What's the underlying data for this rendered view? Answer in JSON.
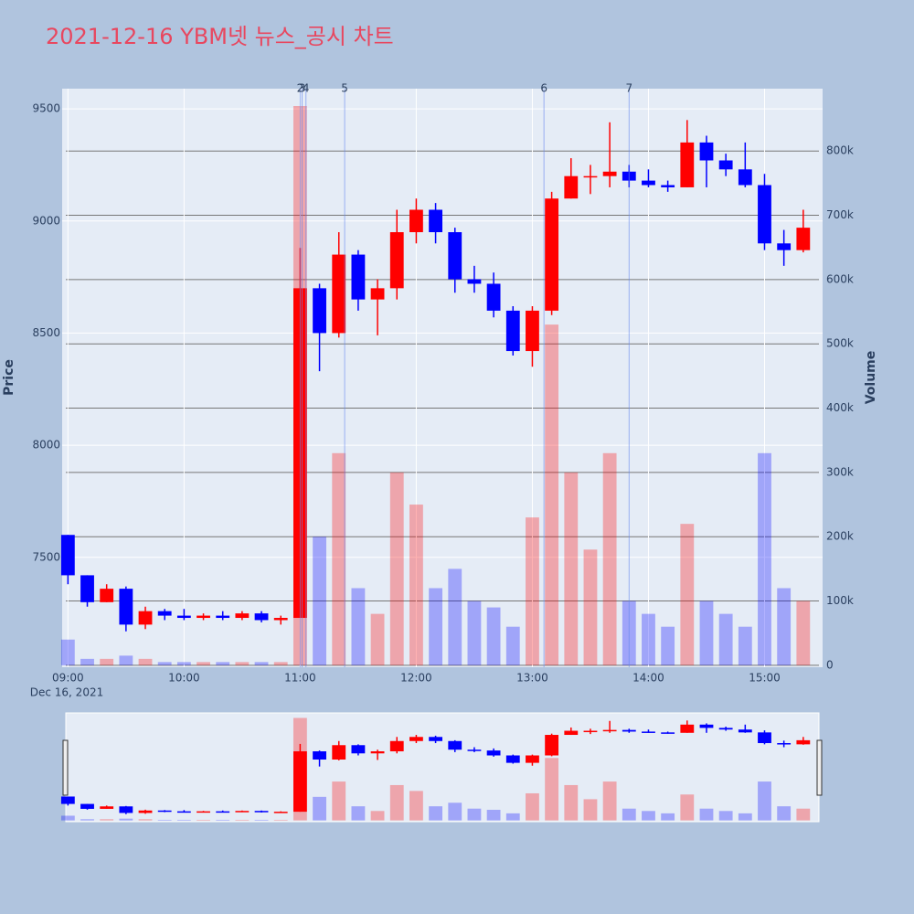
{
  "chart_data": {
    "type": "candlestick",
    "title": "2021-12-16 YBM넷 뉴스_공시 차트",
    "y_label": "Price",
    "y2_label": "Volume",
    "x_date_label": "Dec 16, 2021",
    "increasing_color": "#ff0000",
    "decreasing_color": "#0000ff",
    "x": [
      "09:00",
      "09:10",
      "09:20",
      "09:30",
      "09:40",
      "09:50",
      "10:00",
      "10:10",
      "10:20",
      "10:30",
      "10:40",
      "10:50",
      "11:00",
      "11:10",
      "11:20",
      "11:30",
      "11:40",
      "11:50",
      "12:00",
      "12:10",
      "12:20",
      "12:30",
      "12:40",
      "12:50",
      "13:00",
      "13:10",
      "13:20",
      "13:30",
      "13:40",
      "13:50",
      "14:00",
      "14:10",
      "14:20",
      "14:30",
      "14:40",
      "14:50",
      "15:00",
      "15:10",
      "15:20"
    ],
    "open": [
      7600,
      7420,
      7300,
      7360,
      7200,
      7260,
      7240,
      7230,
      7240,
      7230,
      7250,
      7220,
      7230,
      8700,
      8500,
      8850,
      8650,
      8700,
      8950,
      9050,
      8950,
      8740,
      8720,
      8600,
      8420,
      8600,
      9100,
      9200,
      9200,
      9220,
      9180,
      9160,
      9150,
      9350,
      9270,
      9230,
      9160,
      8900,
      8870
    ],
    "high": [
      7600,
      7420,
      7380,
      7370,
      7280,
      7270,
      7270,
      7250,
      7260,
      7260,
      7260,
      7240,
      8880,
      8720,
      8950,
      8870,
      8740,
      9050,
      9100,
      9080,
      8970,
      8800,
      8770,
      8620,
      8620,
      9130,
      9280,
      9250,
      9440,
      9250,
      9230,
      9180,
      9450,
      9380,
      9300,
      9350,
      9210,
      8960,
      9050
    ],
    "low": [
      7380,
      7280,
      7300,
      7170,
      7180,
      7220,
      7220,
      7220,
      7220,
      7220,
      7210,
      7200,
      7230,
      8330,
      8480,
      8600,
      8490,
      8650,
      8900,
      8900,
      8680,
      8680,
      8570,
      8400,
      8350,
      8580,
      9100,
      9120,
      9150,
      9150,
      9150,
      9130,
      9150,
      9150,
      9200,
      9150,
      8870,
      8800,
      8860
    ],
    "close": [
      7420,
      7300,
      7360,
      7200,
      7260,
      7240,
      7230,
      7240,
      7230,
      7250,
      7220,
      7230,
      8700,
      8500,
      8850,
      8650,
      8700,
      8950,
      9050,
      8950,
      8740,
      8720,
      8600,
      8420,
      8600,
      9100,
      9200,
      9200,
      9220,
      9180,
      9160,
      9150,
      9350,
      9270,
      9230,
      9160,
      8900,
      8870,
      8970
    ],
    "volume": [
      40000,
      10000,
      10000,
      15000,
      10000,
      5000,
      5000,
      5000,
      5000,
      5000,
      5000,
      5000,
      870000,
      200000,
      330000,
      120000,
      80000,
      300000,
      250000,
      120000,
      150000,
      100000,
      90000,
      60000,
      230000,
      530000,
      300000,
      180000,
      330000,
      100000,
      80000,
      60000,
      220000,
      100000,
      80000,
      60000,
      330000,
      120000,
      100000
    ],
    "xlim": [
      "08:57",
      "15:30"
    ],
    "xticks": [
      "09:00",
      "10:00",
      "11:00",
      "12:00",
      "13:00",
      "14:00",
      "15:00"
    ],
    "ylim": [
      7010,
      9590
    ],
    "yticks": [
      7500,
      8000,
      8500,
      9000,
      9500
    ],
    "y2lim": [
      -3000,
      897000
    ],
    "y2ticks": [
      0,
      {
        "value": 100000,
        "label": "100k"
      },
      {
        "value": 200000,
        "label": "200k"
      },
      {
        "value": 300000,
        "label": "300k"
      },
      {
        "value": 400000,
        "label": "400k"
      },
      {
        "value": 500000,
        "label": "500k"
      },
      {
        "value": 600000,
        "label": "600k"
      },
      {
        "value": 700000,
        "label": "700k"
      },
      {
        "value": 800000,
        "label": "800k"
      }
    ],
    "vlines": [
      {
        "x": "11:00",
        "label": "2"
      },
      {
        "x": "11:01",
        "label": "3"
      },
      {
        "x": "11:03",
        "label": "4"
      },
      {
        "x": "11:23",
        "label": "5"
      },
      {
        "x": "13:06",
        "label": "6"
      },
      {
        "x": "13:50",
        "label": "7"
      }
    ],
    "grid": true,
    "rangeslider": true
  }
}
